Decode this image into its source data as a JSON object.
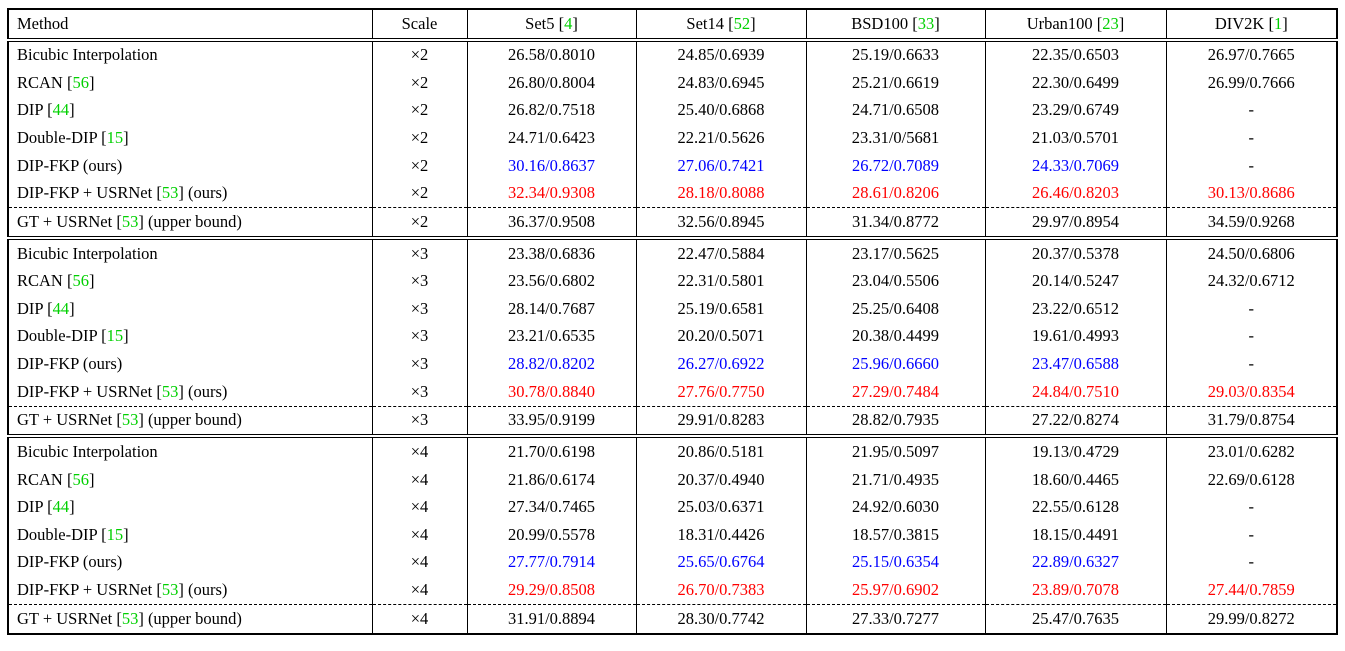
{
  "colors": {
    "citation": "#00d000",
    "best": "#ff0000",
    "second_best": "#0000ff",
    "text": "#000000"
  },
  "table": {
    "header": {
      "method": "Method",
      "scale": "Scale",
      "datasets": [
        {
          "name": "Set5",
          "cite": "4"
        },
        {
          "name": "Set14",
          "cite": "52"
        },
        {
          "name": "BSD100",
          "cite": "33"
        },
        {
          "name": "Urban100",
          "cite": "23"
        },
        {
          "name": "DIV2K",
          "cite": "1"
        }
      ]
    },
    "groups": [
      {
        "scale": "×2",
        "rows": [
          {
            "method": {
              "pre": "Bicubic Interpolation"
            },
            "values": [
              "26.58/0.8010",
              "24.85/0.6939",
              "25.19/0.6633",
              "22.35/0.6503",
              "26.97/0.7665"
            ]
          },
          {
            "method": {
              "pre": "RCAN",
              "cite": "56"
            },
            "values": [
              "26.80/0.8004",
              "24.83/0.6945",
              "25.21/0.6619",
              "22.30/0.6499",
              "26.99/0.7666"
            ]
          },
          {
            "method": {
              "pre": "DIP",
              "cite": "44"
            },
            "values": [
              "26.82/0.7518",
              "25.40/0.6868",
              "24.71/0.6508",
              "23.29/0.6749",
              "-"
            ]
          },
          {
            "method": {
              "pre": "Double-DIP",
              "cite": "15"
            },
            "values": [
              "24.71/0.6423",
              "22.21/0.5626",
              "23.31/0/5681",
              "21.03/0.5701",
              "-"
            ]
          },
          {
            "method": {
              "pre": "DIP-FKP (ours)"
            },
            "highlight": "second",
            "values": [
              "30.16/0.8637",
              "27.06/0.7421",
              "26.72/0.7089",
              "24.33/0.7069",
              "-"
            ]
          },
          {
            "method": {
              "pre": "DIP-FKP + USRNet",
              "cite": "53",
              "post": " (ours)"
            },
            "highlight": "best",
            "values": [
              "32.34/0.9308",
              "28.18/0.8088",
              "28.61/0.8206",
              "26.46/0.8203",
              "30.13/0.8686"
            ]
          },
          {
            "method": {
              "pre": "GT + USRNet",
              "cite": "53",
              "post": " (upper bound)"
            },
            "dashed_top": true,
            "values": [
              "36.37/0.9508",
              "32.56/0.8945",
              "31.34/0.8772",
              "29.97/0.8954",
              "34.59/0.9268"
            ]
          }
        ]
      },
      {
        "scale": "×3",
        "rows": [
          {
            "method": {
              "pre": "Bicubic Interpolation"
            },
            "values": [
              "23.38/0.6836",
              "22.47/0.5884",
              "23.17/0.5625",
              "20.37/0.5378",
              "24.50/0.6806"
            ]
          },
          {
            "method": {
              "pre": "RCAN",
              "cite": "56"
            },
            "values": [
              "23.56/0.6802",
              "22.31/0.5801",
              "23.04/0.5506",
              "20.14/0.5247",
              "24.32/0.6712"
            ]
          },
          {
            "method": {
              "pre": "DIP",
              "cite": "44"
            },
            "values": [
              "28.14/0.7687",
              "25.19/0.6581",
              "25.25/0.6408",
              "23.22/0.6512",
              "-"
            ]
          },
          {
            "method": {
              "pre": "Double-DIP",
              "cite": "15"
            },
            "values": [
              "23.21/0.6535",
              "20.20/0.5071",
              "20.38/0.4499",
              "19.61/0.4993",
              "-"
            ]
          },
          {
            "method": {
              "pre": "DIP-FKP (ours)"
            },
            "highlight": "second",
            "values": [
              "28.82/0.8202",
              "26.27/0.6922",
              "25.96/0.6660",
              "23.47/0.6588",
              "-"
            ]
          },
          {
            "method": {
              "pre": "DIP-FKP + USRNet",
              "cite": "53",
              "post": " (ours)"
            },
            "highlight": "best",
            "values": [
              "30.78/0.8840",
              "27.76/0.7750",
              "27.29/0.7484",
              "24.84/0.7510",
              "29.03/0.8354"
            ]
          },
          {
            "method": {
              "pre": "GT + USRNet",
              "cite": "53",
              "post": " (upper bound)"
            },
            "dashed_top": true,
            "values": [
              "33.95/0.9199",
              "29.91/0.8283",
              "28.82/0.7935",
              "27.22/0.8274",
              "31.79/0.8754"
            ]
          }
        ]
      },
      {
        "scale": "×4",
        "rows": [
          {
            "method": {
              "pre": "Bicubic Interpolation"
            },
            "values": [
              "21.70/0.6198",
              "20.86/0.5181",
              "21.95/0.5097",
              "19.13/0.4729",
              "23.01/0.6282"
            ]
          },
          {
            "method": {
              "pre": "RCAN",
              "cite": "56"
            },
            "values": [
              "21.86/0.6174",
              "20.37/0.4940",
              "21.71/0.4935",
              "18.60/0.4465",
              "22.69/0.6128"
            ]
          },
          {
            "method": {
              "pre": "DIP",
              "cite": "44"
            },
            "values": [
              "27.34/0.7465",
              "25.03/0.6371",
              "24.92/0.6030",
              "22.55/0.6128",
              "-"
            ]
          },
          {
            "method": {
              "pre": "Double-DIP",
              "cite": "15"
            },
            "values": [
              "20.99/0.5578",
              "18.31/0.4426",
              "18.57/0.3815",
              "18.15/0.4491",
              "-"
            ]
          },
          {
            "method": {
              "pre": "DIP-FKP (ours)"
            },
            "highlight": "second",
            "values": [
              "27.77/0.7914",
              "25.65/0.6764",
              "25.15/0.6354",
              "22.89/0.6327",
              "-"
            ]
          },
          {
            "method": {
              "pre": "DIP-FKP + USRNet",
              "cite": "53",
              "post": " (ours)"
            },
            "highlight": "best",
            "values": [
              "29.29/0.8508",
              "26.70/0.7383",
              "25.97/0.6902",
              "23.89/0.7078",
              "27.44/0.7859"
            ]
          },
          {
            "method": {
              "pre": "GT + USRNet",
              "cite": "53",
              "post": " (upper bound)"
            },
            "dashed_top": true,
            "values": [
              "31.91/0.8894",
              "28.30/0.7742",
              "27.33/0.7277",
              "25.47/0.7635",
              "29.99/0.8272"
            ]
          }
        ]
      }
    ]
  }
}
